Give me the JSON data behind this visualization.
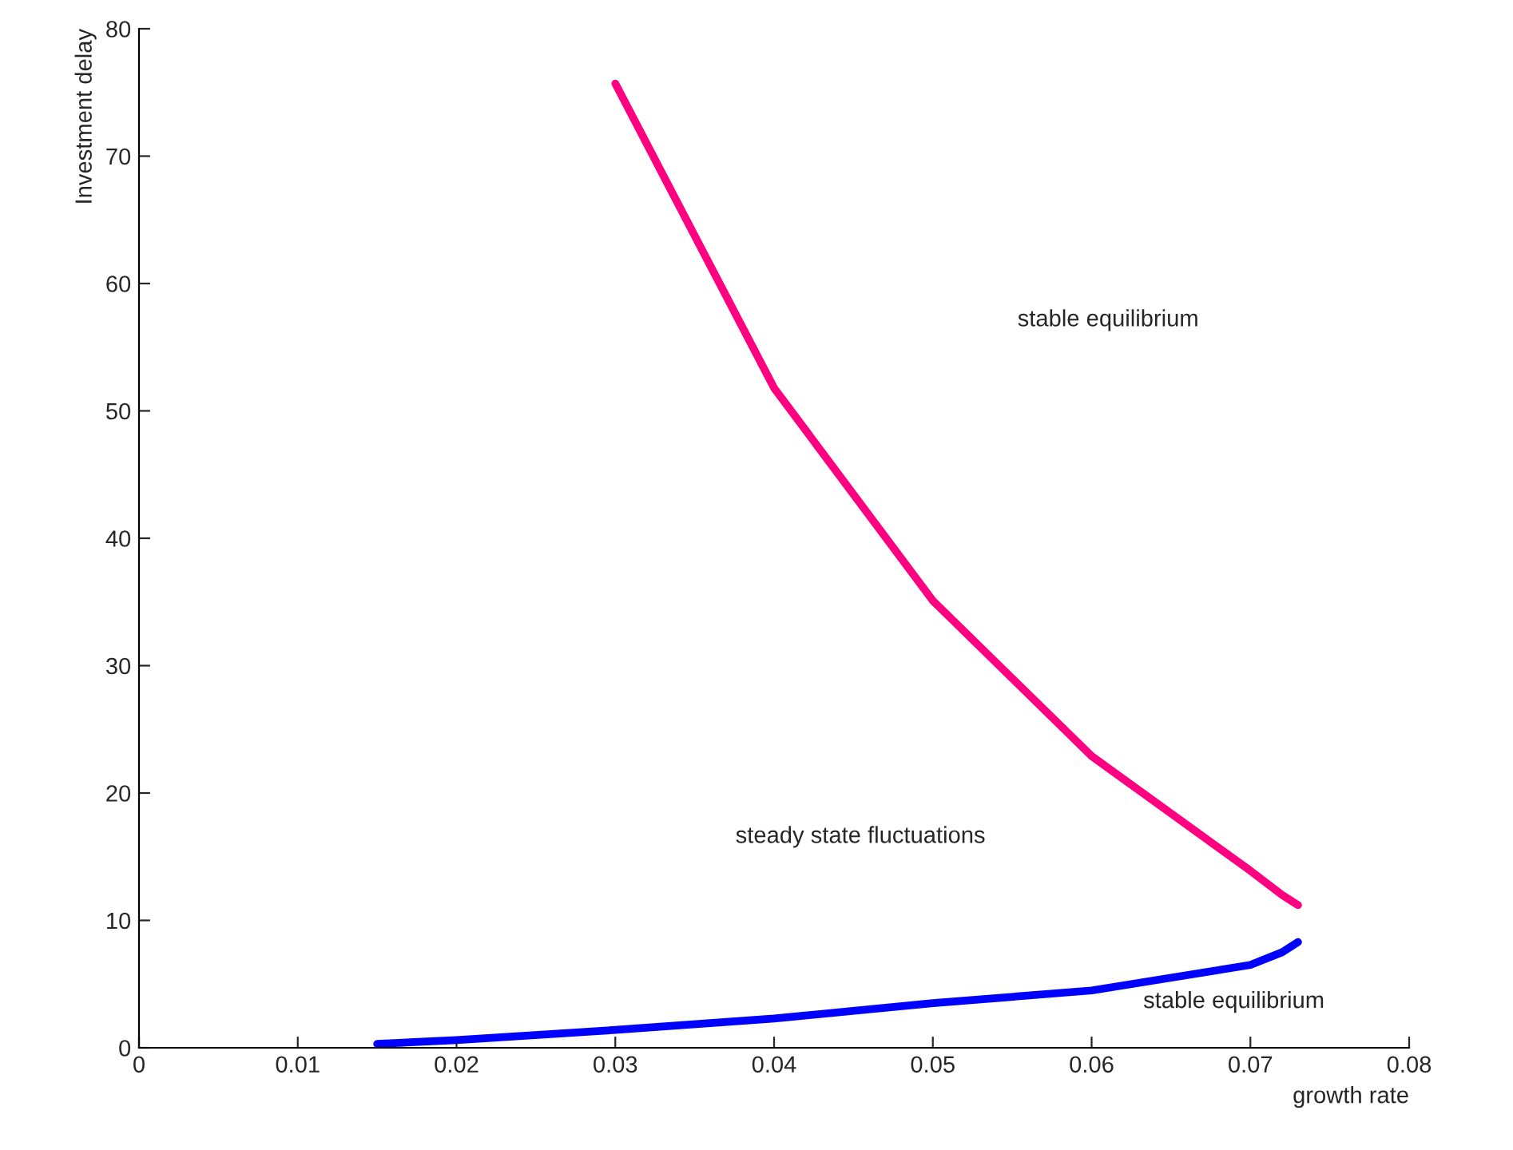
{
  "chart_data": {
    "type": "line",
    "xlabel": "growth rate",
    "ylabel": "Investment delay",
    "xlim": [
      0,
      0.08
    ],
    "ylim": [
      0,
      80
    ],
    "xticks": [
      0,
      0.01,
      0.02,
      0.03,
      0.04,
      0.05,
      0.06,
      0.07,
      0.08
    ],
    "yticks": [
      0,
      10,
      20,
      30,
      40,
      50,
      60,
      70,
      80
    ],
    "series": [
      {
        "color": "#ff0080",
        "x": [
          0.03,
          0.04,
          0.05,
          0.06,
          0.07,
          0.072,
          0.073
        ],
        "values": [
          75.7,
          51.8,
          35.1,
          22.9,
          13.9,
          12.0,
          11.2
        ]
      },
      {
        "color": "#0000ff",
        "x": [
          0.015,
          0.02,
          0.03,
          0.04,
          0.05,
          0.06,
          0.07,
          0.072,
          0.073
        ],
        "values": [
          0.3,
          0.6,
          1.4,
          2.3,
          3.5,
          4.5,
          6.5,
          7.5,
          8.3
        ]
      }
    ],
    "annotations": [
      "stable equilibrium",
      "steady state fluctuations",
      "stable equilibrium"
    ],
    "grid": false,
    "legend": false
  }
}
